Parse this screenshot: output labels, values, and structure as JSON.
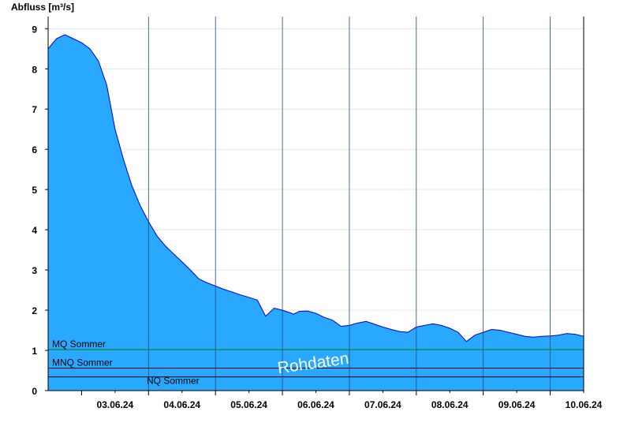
{
  "chart_data": {
    "type": "area",
    "title": "",
    "ylabel": "Abfluss [m³/s]",
    "xlabel": "",
    "ylim": [
      0,
      9.3
    ],
    "yticks": [
      0,
      1,
      2,
      3,
      4,
      5,
      6,
      7,
      8,
      9
    ],
    "xlim": [
      "2024-06-02T12:00",
      "2024-06-10T12:00"
    ],
    "xtick_labels": [
      "03.06.24",
      "04.06.24",
      "05.06.24",
      "06.06.24",
      "07.06.24",
      "08.06.24",
      "09.06.24",
      "10.06.24"
    ],
    "grid": true,
    "series": [
      {
        "color": "#29a8ff",
        "line_color": "#0000cc",
        "x": [
          "2024-06-02T12:00",
          "2024-06-02T15:00",
          "2024-06-02T18:00",
          "2024-06-02T21:00",
          "2024-06-03T00:00",
          "2024-06-03T03:00",
          "2024-06-03T06:00",
          "2024-06-03T09:00",
          "2024-06-03T12:00",
          "2024-06-03T15:00",
          "2024-06-03T18:00",
          "2024-06-03T21:00",
          "2024-06-04T00:00",
          "2024-06-04T03:00",
          "2024-06-04T06:00",
          "2024-06-04T09:00",
          "2024-06-04T12:00",
          "2024-06-04T15:00",
          "2024-06-04T18:00",
          "2024-06-04T21:00",
          "2024-06-05T00:00",
          "2024-06-05T03:00",
          "2024-06-05T06:00",
          "2024-06-05T09:00",
          "2024-06-05T12:00",
          "2024-06-05T15:00",
          "2024-06-05T18:00",
          "2024-06-05T21:00",
          "2024-06-06T00:00",
          "2024-06-06T03:00",
          "2024-06-06T04:00",
          "2024-06-06T06:00",
          "2024-06-06T09:00",
          "2024-06-06T12:00",
          "2024-06-06T15:00",
          "2024-06-06T18:00",
          "2024-06-06T21:00",
          "2024-06-07T00:00",
          "2024-06-07T03:00",
          "2024-06-07T06:00",
          "2024-06-07T09:00",
          "2024-06-07T12:00",
          "2024-06-07T15:00",
          "2024-06-07T18:00",
          "2024-06-07T21:00",
          "2024-06-08T00:00",
          "2024-06-08T03:00",
          "2024-06-08T06:00",
          "2024-06-08T09:00",
          "2024-06-08T12:00",
          "2024-06-08T15:00",
          "2024-06-08T18:00",
          "2024-06-08T21:00",
          "2024-06-09T00:00",
          "2024-06-09T03:00",
          "2024-06-09T06:00",
          "2024-06-09T09:00",
          "2024-06-09T12:00",
          "2024-06-09T15:00",
          "2024-06-09T18:00",
          "2024-06-09T21:00",
          "2024-06-10T00:00",
          "2024-06-10T03:00",
          "2024-06-10T06:00",
          "2024-06-10T09:00",
          "2024-06-10T12:00"
        ],
        "y": [
          8.5,
          8.75,
          8.85,
          8.75,
          8.65,
          8.5,
          8.2,
          7.6,
          6.5,
          5.75,
          5.1,
          4.6,
          4.2,
          3.85,
          3.6,
          3.4,
          3.2,
          3.0,
          2.78,
          2.68,
          2.6,
          2.52,
          2.45,
          2.38,
          2.32,
          2.25,
          1.85,
          2.05,
          2.0,
          1.93,
          1.9,
          1.97,
          1.98,
          1.92,
          1.82,
          1.75,
          1.6,
          1.62,
          1.68,
          1.72,
          1.65,
          1.58,
          1.52,
          1.47,
          1.45,
          1.58,
          1.62,
          1.66,
          1.62,
          1.55,
          1.45,
          1.22,
          1.38,
          1.45,
          1.52,
          1.5,
          1.45,
          1.4,
          1.35,
          1.33,
          1.35,
          1.36,
          1.38,
          1.42,
          1.4,
          1.35
        ]
      }
    ],
    "reference_lines": [
      {
        "label": "MQ Sommer",
        "value": 1.02,
        "color": "#008000"
      },
      {
        "label": "MNQ Sommer",
        "value": 0.56,
        "color": "#000000"
      },
      {
        "label": "NQ Sommer",
        "value": 0.34,
        "color": "#000000"
      }
    ],
    "annotations": [
      "Rohdaten"
    ]
  }
}
